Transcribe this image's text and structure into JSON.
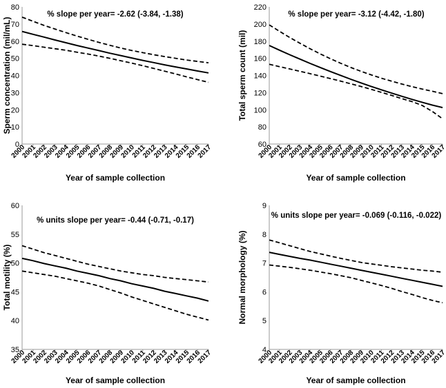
{
  "chart_data": [
    {
      "type": "line",
      "xlabel": "Year of sample collection",
      "ylabel": "Sperm concentration (mil/mL)",
      "annotation": "% slope per year= -2.62 (-3.84, -1.38)",
      "ylim": [
        0,
        80
      ],
      "yticks": [
        0,
        10,
        20,
        30,
        40,
        50,
        60,
        70,
        80
      ],
      "x": [
        "2000",
        "2001",
        "2002",
        "2003",
        "2004",
        "2005",
        "2006",
        "2007",
        "2008",
        "2009",
        "2010",
        "2011",
        "2012",
        "2013",
        "2014",
        "2015",
        "2016",
        "2017"
      ],
      "series": [
        {
          "style": "solid",
          "values": [
            65.7,
            64.0,
            62.4,
            60.7,
            59.1,
            57.5,
            56.0,
            54.5,
            53.0,
            51.6,
            50.2,
            48.8,
            47.5,
            46.2,
            45.0,
            43.8,
            42.6,
            41.5
          ]
        },
        {
          "style": "dashed",
          "values": [
            74.0,
            71.6,
            69.2,
            67.1,
            65.0,
            63.0,
            61.1,
            59.3,
            57.6,
            56.0,
            54.6,
            53.3,
            52.1,
            51.0,
            50.0,
            49.0,
            48.2,
            47.4
          ]
        },
        {
          "style": "dashed",
          "values": [
            58.2,
            57.4,
            56.5,
            55.6,
            54.7,
            53.6,
            52.5,
            51.3,
            50.0,
            48.6,
            47.2,
            45.7,
            44.1,
            42.5,
            40.9,
            39.2,
            37.6,
            36.0
          ]
        }
      ]
    },
    {
      "type": "line",
      "xlabel": "Year of sample collection",
      "ylabel": "Total sperm count (mil)",
      "annotation": "% slope per year= -3.12 (-4.42, -1.80)",
      "ylim": [
        60,
        220
      ],
      "yticks": [
        60,
        80,
        100,
        120,
        140,
        160,
        180,
        200,
        220
      ],
      "x": [
        "2000",
        "2001",
        "2002",
        "2003",
        "2004",
        "2005",
        "2006",
        "2007",
        "2008",
        "2009",
        "2010",
        "2011",
        "2012",
        "2013",
        "2014",
        "2015",
        "2016",
        "2017"
      ],
      "series": [
        {
          "style": "solid",
          "values": [
            175,
            169.5,
            164.2,
            159.1,
            154.1,
            149.3,
            144.6,
            140.1,
            135.6,
            131.3,
            127.2,
            123.3,
            119.4,
            115.7,
            112.1,
            108.7,
            105.4,
            102.5
          ]
        },
        {
          "style": "dashed",
          "values": [
            199,
            191.5,
            184.4,
            177.6,
            171.2,
            165.2,
            159.5,
            154.2,
            149.3,
            144.8,
            140.7,
            136.8,
            133.3,
            130.0,
            127.0,
            124.2,
            121.6,
            118.8
          ]
        },
        {
          "style": "dashed",
          "values": [
            153,
            150.3,
            147.6,
            144.9,
            142.1,
            139.3,
            136.4,
            133.4,
            130.3,
            127.1,
            123.8,
            120.3,
            116.8,
            113.0,
            109.5,
            105.0,
            98.0,
            89.5
          ]
        }
      ]
    },
    {
      "type": "line",
      "xlabel": "Year of sample collection",
      "ylabel": "Total motility (%)",
      "annotation": "% units slope per year= -0.44 (-0.71, -0.17)",
      "ylim": [
        35,
        60
      ],
      "yticks": [
        35,
        40,
        45,
        50,
        55,
        60
      ],
      "x": [
        "2000",
        "2001",
        "2002",
        "2003",
        "2004",
        "2005",
        "2006",
        "2007",
        "2008",
        "2009",
        "2010",
        "2011",
        "2012",
        "2013",
        "2014",
        "2015",
        "2016",
        "2017"
      ],
      "series": [
        {
          "style": "solid",
          "values": [
            50.8,
            50.4,
            49.9,
            49.5,
            49.1,
            48.6,
            48.2,
            47.8,
            47.3,
            46.9,
            46.4,
            46.0,
            45.6,
            45.1,
            44.7,
            44.3,
            43.9,
            43.4
          ]
        },
        {
          "style": "dashed",
          "values": [
            53.0,
            52.4,
            51.8,
            51.3,
            50.8,
            50.3,
            49.8,
            49.4,
            49.0,
            48.6,
            48.3,
            48.0,
            47.8,
            47.5,
            47.3,
            47.1,
            46.9,
            46.7
          ]
        },
        {
          "style": "dashed",
          "values": [
            48.6,
            48.3,
            48.0,
            47.7,
            47.3,
            46.9,
            46.5,
            46.0,
            45.4,
            44.8,
            44.1,
            43.5,
            42.9,
            42.3,
            41.7,
            41.1,
            40.6,
            40.1
          ]
        }
      ]
    },
    {
      "type": "line",
      "xlabel": "Year of sample collection",
      "ylabel": "Normal morphology (%)",
      "annotation": "% units slope per year= -0.069 (-0.116, -0.022)",
      "ylim": [
        4,
        9
      ],
      "yticks": [
        4,
        5,
        6,
        7,
        8,
        9
      ],
      "x": [
        "2000",
        "2001",
        "2002",
        "2003",
        "2004",
        "2005",
        "2006",
        "2007",
        "2008",
        "2009",
        "2010",
        "2011",
        "2012",
        "2013",
        "2014",
        "2015",
        "2016",
        "2017"
      ],
      "series": [
        {
          "style": "solid",
          "values": [
            7.37,
            7.3,
            7.23,
            7.16,
            7.1,
            7.03,
            6.96,
            6.89,
            6.82,
            6.75,
            6.68,
            6.61,
            6.54,
            6.47,
            6.4,
            6.33,
            6.26,
            6.19
          ]
        },
        {
          "style": "dashed",
          "values": [
            7.8,
            7.7,
            7.6,
            7.5,
            7.4,
            7.32,
            7.24,
            7.16,
            7.09,
            7.02,
            6.97,
            6.92,
            6.87,
            6.83,
            6.79,
            6.75,
            6.72,
            6.68
          ]
        },
        {
          "style": "dashed",
          "values": [
            6.93,
            6.89,
            6.85,
            6.8,
            6.75,
            6.69,
            6.63,
            6.56,
            6.49,
            6.4,
            6.31,
            6.22,
            6.12,
            6.01,
            5.91,
            5.8,
            5.7,
            5.62
          ]
        }
      ]
    }
  ]
}
